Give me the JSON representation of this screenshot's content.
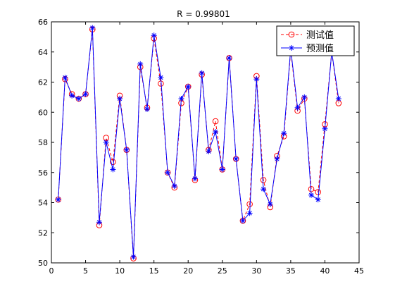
{
  "chart_data": {
    "type": "line",
    "title": "R = 0.99801",
    "xlabel": "",
    "ylabel": "",
    "xlim": [
      0,
      45
    ],
    "ylim": [
      50,
      66
    ],
    "xticks": [
      0,
      5,
      10,
      15,
      20,
      25,
      30,
      35,
      40,
      45
    ],
    "yticks": [
      50,
      52,
      54,
      56,
      58,
      60,
      62,
      64,
      66
    ],
    "grid": false,
    "legend_position": "top-right",
    "x": [
      1,
      2,
      3,
      4,
      5,
      6,
      7,
      8,
      9,
      10,
      11,
      12,
      13,
      14,
      15,
      16,
      17,
      18,
      19,
      20,
      21,
      22,
      23,
      24,
      25,
      26,
      27,
      28,
      29,
      30,
      31,
      32,
      33,
      34,
      35,
      36,
      37,
      38,
      39,
      40,
      41,
      42
    ],
    "series": [
      {
        "name": "测试值",
        "color": "#ff0000",
        "line_style": "dashed",
        "marker": "circle",
        "values": [
          54.2,
          62.2,
          61.2,
          60.9,
          61.2,
          65.5,
          52.5,
          58.3,
          56.7,
          61.1,
          57.5,
          50.3,
          63.0,
          60.3,
          64.9,
          61.9,
          56.0,
          55.0,
          60.6,
          61.7,
          55.5,
          62.5,
          57.5,
          59.4,
          56.2,
          63.6,
          56.9,
          52.8,
          53.9,
          62.4,
          55.5,
          53.7,
          57.1,
          58.4,
          64.1,
          60.1,
          60.9,
          54.9,
          54.7,
          59.2,
          64.0,
          60.6
        ]
      },
      {
        "name": "预测值",
        "color": "#0000ff",
        "line_style": "solid",
        "marker": "star",
        "values": [
          54.2,
          62.3,
          61.1,
          60.9,
          61.2,
          65.6,
          52.7,
          58.0,
          56.2,
          60.9,
          57.5,
          50.4,
          63.2,
          60.2,
          65.1,
          62.3,
          56.0,
          55.1,
          60.9,
          61.7,
          55.6,
          62.6,
          57.4,
          58.7,
          56.2,
          63.6,
          56.9,
          52.8,
          53.3,
          62.2,
          54.9,
          53.9,
          56.9,
          58.6,
          64.2,
          60.3,
          61.0,
          54.5,
          54.2,
          58.9,
          64.0,
          60.9
        ]
      }
    ]
  }
}
